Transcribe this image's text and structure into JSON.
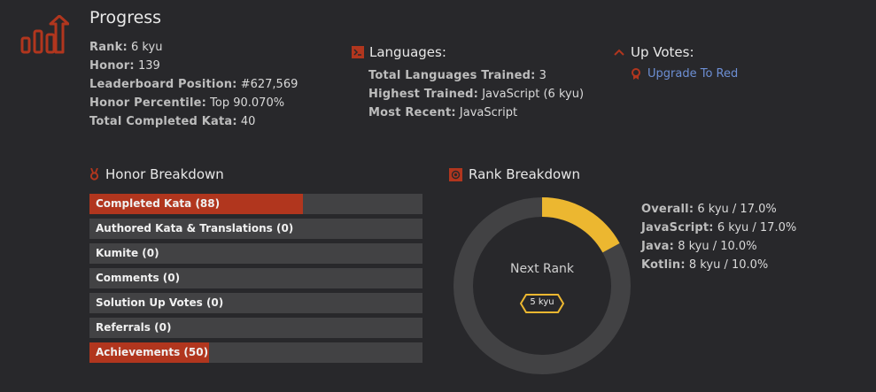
{
  "progress": {
    "title": "Progress",
    "stats": [
      {
        "label": "Rank:",
        "value": "6 kyu"
      },
      {
        "label": "Honor:",
        "value": "139"
      },
      {
        "label": "Leaderboard Position:",
        "value": "#627,569"
      },
      {
        "label": "Honor Percentile:",
        "value": "Top 90.070%"
      },
      {
        "label": "Total Completed Kata:",
        "value": "40"
      }
    ]
  },
  "languages": {
    "title": "Languages:",
    "stats": [
      {
        "label": "Total Languages Trained:",
        "value": "3"
      },
      {
        "label": "Highest Trained:",
        "value": "JavaScript (6 kyu)"
      },
      {
        "label": "Most Recent:",
        "value": "JavaScript"
      }
    ]
  },
  "upvotes": {
    "title": "Up Votes:",
    "link_label": "Upgrade To Red"
  },
  "honor_breakdown": {
    "title": "Honor Breakdown",
    "items": [
      {
        "label": "Completed Kata (88)",
        "fill": 0.64
      },
      {
        "label": "Authored Kata & Translations (0)",
        "fill": 0
      },
      {
        "label": "Kumite (0)",
        "fill": 0
      },
      {
        "label": "Comments (0)",
        "fill": 0
      },
      {
        "label": "Solution Up Votes (0)",
        "fill": 0
      },
      {
        "label": "Referrals (0)",
        "fill": 0
      },
      {
        "label": "Achievements (50)",
        "fill": 0.36
      }
    ]
  },
  "rank_breakdown": {
    "title": "Rank Breakdown",
    "progress_fraction": 0.17,
    "next_rank_label": "Next Rank",
    "next_rank_value": "5 kyu",
    "stats": [
      {
        "label": "Overall:",
        "value": "6 kyu / 17.0%"
      },
      {
        "label": "JavaScript:",
        "value": "6 kyu / 17.0%"
      },
      {
        "label": "Java:",
        "value": "8 kyu / 10.0%"
      },
      {
        "label": "Kotlin:",
        "value": "8 kyu / 10.0%"
      }
    ]
  },
  "colors": {
    "accent": "#b1361e",
    "rank_yellow": "#ecb730",
    "track": "#424244",
    "link": "#6d8fd4"
  }
}
